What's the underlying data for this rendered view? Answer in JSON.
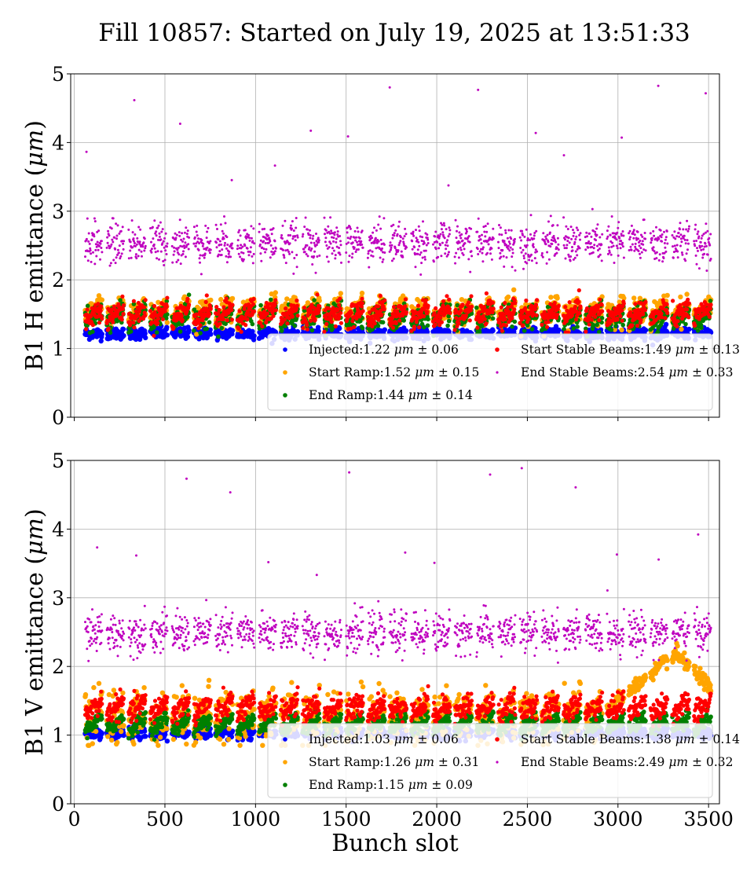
{
  "figure": {
    "title": "Fill 10857: Started on July 19, 2025 at 13:51:33"
  },
  "colors": {
    "injected": "#0000ff",
    "start_ramp": "#ffa500",
    "end_ramp": "#008000",
    "start_stable": "#ff0000",
    "end_stable": "#bf00bf",
    "grid": "#b0b0b0"
  },
  "chart_data": [
    {
      "type": "scatter",
      "title": "Fill 10857: Started on July 19, 2025 at 13:51:33",
      "xlabel": "",
      "ylabel": "B1 H emittance (μm)",
      "xlim": [
        -20,
        3560
      ],
      "ylim": [
        0,
        5
      ],
      "xticks": [
        0,
        500,
        1000,
        1500,
        2000,
        2500,
        3000,
        3500
      ],
      "xtick_labels_shown": false,
      "yticks": [
        0,
        1,
        2,
        3,
        4,
        5
      ],
      "grid": true,
      "legend_position": "lower-right",
      "bunch_slot_range": [
        0,
        3430
      ],
      "series": [
        {
          "key": "injected",
          "name": "Injected:1.22 μm ± 0.06",
          "mean": 1.22,
          "std": 0.06
        },
        {
          "key": "start_ramp",
          "name": "Start Ramp:1.52 μm ± 0.15",
          "mean": 1.52,
          "std": 0.15
        },
        {
          "key": "end_ramp",
          "name": "End Ramp:1.44 μm ± 0.14",
          "mean": 1.44,
          "std": 0.14
        },
        {
          "key": "start_stable",
          "name": "Start Stable Beams:1.49 μm ± 0.13",
          "mean": 1.49,
          "std": 0.13
        },
        {
          "key": "end_stable",
          "name": "End Stable Beams:2.54 μm ± 0.33",
          "mean": 2.54,
          "std": 0.33
        }
      ]
    },
    {
      "type": "scatter",
      "xlabel": "Bunch slot",
      "ylabel": "B1 V emittance (μm)",
      "xlim": [
        -20,
        3560
      ],
      "ylim": [
        0,
        5
      ],
      "xticks": [
        0,
        500,
        1000,
        1500,
        2000,
        2500,
        3000,
        3500
      ],
      "xtick_labels_shown": true,
      "yticks": [
        0,
        1,
        2,
        3,
        4,
        5
      ],
      "grid": true,
      "legend_position": "lower-right",
      "bunch_slot_range": [
        0,
        3430
      ],
      "series": [
        {
          "key": "injected",
          "name": "Injected:1.03 μm ± 0.06",
          "mean": 1.03,
          "std": 0.06
        },
        {
          "key": "start_ramp",
          "name": "Start Ramp:1.26 μm ± 0.31",
          "mean": 1.26,
          "std": 0.31
        },
        {
          "key": "end_ramp",
          "name": "End Ramp:1.15 μm ± 0.09",
          "mean": 1.15,
          "std": 0.09
        },
        {
          "key": "start_stable",
          "name": "Start Stable Beams:1.38 μm ± 0.14",
          "mean": 1.38,
          "std": 0.14
        },
        {
          "key": "end_stable",
          "name": "End Stable Beams:2.49 μm ± 0.32",
          "mean": 2.49,
          "std": 0.32
        }
      ]
    }
  ]
}
